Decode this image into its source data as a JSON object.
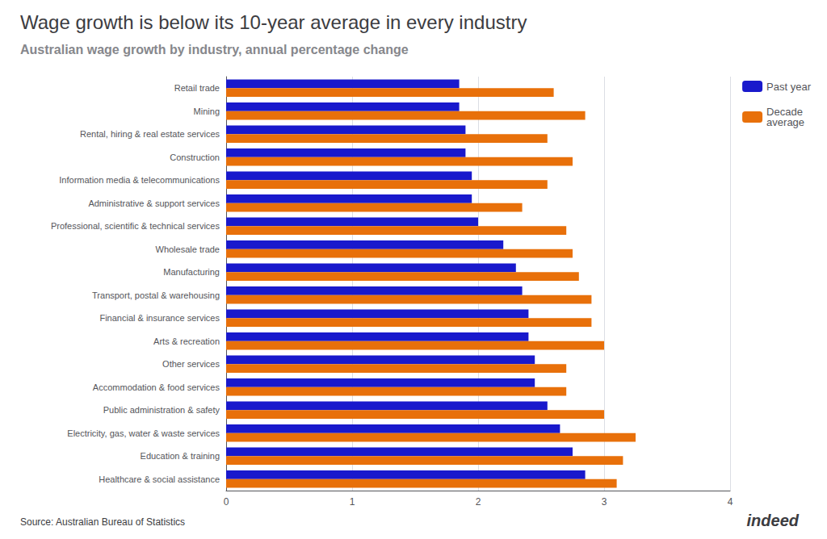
{
  "chart_data": {
    "type": "bar",
    "orientation": "horizontal",
    "title": "Wage growth is below its 10-year average in every industry",
    "subtitle": "Australian wage growth by industry, annual percentage change",
    "source": "Source: Australian Bureau of Statistics",
    "annotations": [
      "indeed"
    ],
    "categories": [
      "Healthcare & social assistance",
      "Education & training",
      "Electricity, gas, water & waste services",
      "Public administration & safety",
      "Accommodation & food services",
      "Other services",
      "Arts & recreation",
      "Financial & insurance services",
      "Transport, postal & warehousing",
      "Manufacturing",
      "Wholesale trade",
      "Professional, scientific & technical services",
      "Administrative & support services",
      "Information media & telecommunications",
      "Construction",
      "Rental, hiring & real estate services",
      "Mining",
      "Retail trade"
    ],
    "series": [
      {
        "name": "Past year",
        "color": "#1919cc",
        "values": [
          2.85,
          2.75,
          2.65,
          2.55,
          2.45,
          2.45,
          2.4,
          2.4,
          2.35,
          2.3,
          2.2,
          2.0,
          1.95,
          1.95,
          1.9,
          1.9,
          1.85,
          1.85
        ]
      },
      {
        "name": "Decade\naverage",
        "color": "#e8700a",
        "values": [
          3.1,
          3.15,
          3.25,
          3.0,
          2.7,
          2.7,
          3.0,
          2.9,
          2.9,
          2.8,
          2.75,
          2.7,
          2.35,
          2.55,
          2.75,
          2.55,
          2.85,
          2.6
        ]
      }
    ],
    "xlim": [
      0,
      4
    ],
    "xticks": [
      0,
      1,
      2,
      3,
      4
    ],
    "grid": true,
    "legend": "upper right"
  }
}
